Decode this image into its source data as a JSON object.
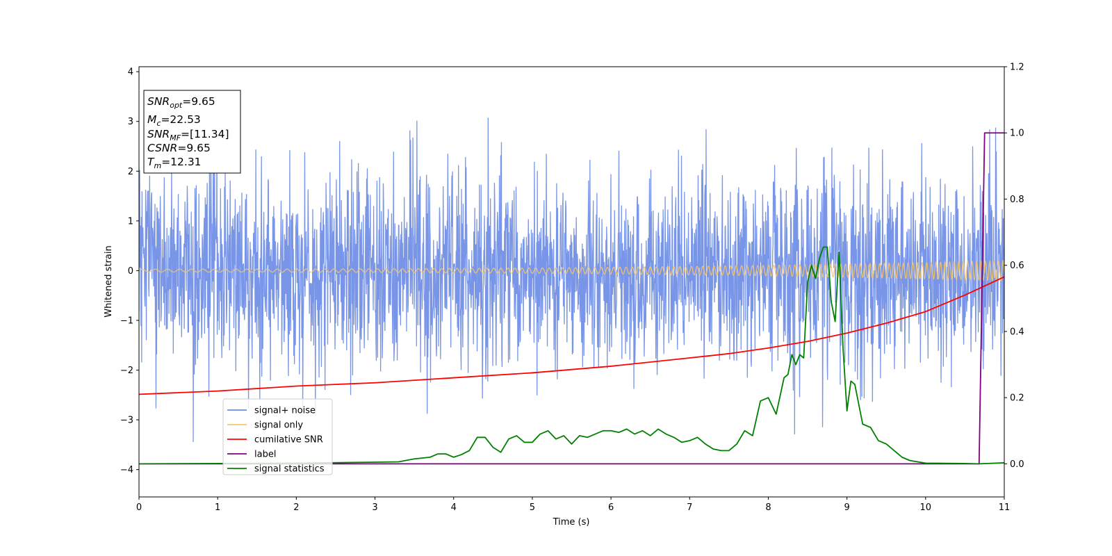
{
  "chart_data": {
    "type": "line",
    "xlabel": "Time (s)",
    "ylabel": "Whitened strain",
    "xlim": [
      0,
      11
    ],
    "ylim_left": [
      -4.55,
      4.1
    ],
    "ylim_right": [
      -0.1,
      1.2
    ],
    "xticks": [
      "0",
      "1",
      "2",
      "3",
      "4",
      "5",
      "6",
      "7",
      "8",
      "9",
      "10",
      "11"
    ],
    "yticks_left": [
      "4",
      "3",
      "2",
      "1",
      "0",
      "−1",
      "−2",
      "−3",
      "−4"
    ],
    "yticks_right": [
      "1.2",
      "1.0",
      "0.8",
      "0.6",
      "0.4",
      "0.2",
      "0.0"
    ],
    "info_box": {
      "snr_opt": {
        "base": "SNR",
        "sub": "opt",
        "value": "=9.65"
      },
      "mc": {
        "base": "M",
        "sub": "c",
        "value": "=22.53"
      },
      "snr_mf": {
        "base": "SNR",
        "sub": "MF",
        "value": "=[11.34]"
      },
      "csnr": {
        "base": "CSNR",
        "value": "=9.65"
      },
      "tm": {
        "base": "T",
        "sub": "m",
        "value": "=12.31"
      }
    },
    "legend": {
      "placement": "lower-left",
      "entries": [
        {
          "label": "signal+ noise",
          "color": "#6d8ce6"
        },
        {
          "label": "signal only",
          "color": "#f5c56b"
        },
        {
          "label": "cumilative SNR",
          "color": "#ff0000"
        },
        {
          "label": "label",
          "color": "#800080"
        },
        {
          "label": "signal statistics",
          "color": "#008000"
        }
      ]
    },
    "series": [
      {
        "name": "signal+ noise",
        "axis": "left",
        "description": "whitened noisy strain, roughly Gaussian with sd ~1, peaks reach about +3.7 and -3.6",
        "amplitude_range": [
          -3.6,
          3.7
        ]
      },
      {
        "name": "signal only",
        "axis": "left",
        "description": "chirp oscillation with rising frequency and amplitude",
        "amplitude_start": 0.03,
        "amplitude_end": 0.2
      },
      {
        "name": "cumilative SNR",
        "axis": "right",
        "x": [
          0,
          1,
          2,
          3,
          4,
          5,
          6,
          7,
          7.5,
          8,
          8.5,
          9,
          9.5,
          10,
          10.5,
          11
        ],
        "y": [
          0.21,
          0.22,
          0.235,
          0.245,
          0.26,
          0.275,
          0.295,
          0.32,
          0.333,
          0.35,
          0.37,
          0.395,
          0.425,
          0.46,
          0.51,
          0.565
        ]
      },
      {
        "name": "label",
        "axis": "right",
        "x": [
          0,
          10.68,
          10.75,
          11
        ],
        "y": [
          0.0,
          0.0,
          1.0,
          1.0
        ]
      },
      {
        "name": "signal statistics",
        "axis": "right",
        "x": [
          0,
          1,
          2,
          3,
          3.3,
          3.5,
          3.7,
          3.8,
          3.9,
          4.0,
          4.1,
          4.2,
          4.3,
          4.4,
          4.5,
          4.6,
          4.7,
          4.8,
          4.9,
          5.0,
          5.1,
          5.2,
          5.3,
          5.4,
          5.5,
          5.6,
          5.7,
          5.8,
          5.9,
          6.0,
          6.1,
          6.2,
          6.3,
          6.4,
          6.5,
          6.6,
          6.7,
          6.8,
          6.9,
          7.0,
          7.1,
          7.2,
          7.3,
          7.4,
          7.5,
          7.6,
          7.7,
          7.8,
          7.9,
          8.0,
          8.1,
          8.2,
          8.25,
          8.3,
          8.35,
          8.4,
          8.45,
          8.5,
          8.55,
          8.6,
          8.65,
          8.7,
          8.75,
          8.8,
          8.85,
          8.9,
          8.95,
          9.0,
          9.05,
          9.1,
          9.2,
          9.3,
          9.4,
          9.5,
          9.6,
          9.7,
          9.8,
          10.0,
          10.5,
          10.68,
          11
        ],
        "y": [
          0.0,
          0.001,
          0.002,
          0.005,
          0.006,
          0.015,
          0.02,
          0.03,
          0.03,
          0.02,
          0.028,
          0.04,
          0.08,
          0.08,
          0.05,
          0.035,
          0.075,
          0.085,
          0.065,
          0.065,
          0.09,
          0.1,
          0.075,
          0.085,
          0.06,
          0.085,
          0.08,
          0.09,
          0.1,
          0.1,
          0.095,
          0.105,
          0.09,
          0.1,
          0.085,
          0.105,
          0.09,
          0.08,
          0.065,
          0.07,
          0.08,
          0.06,
          0.045,
          0.04,
          0.04,
          0.06,
          0.1,
          0.085,
          0.19,
          0.2,
          0.15,
          0.26,
          0.27,
          0.33,
          0.3,
          0.33,
          0.32,
          0.55,
          0.6,
          0.56,
          0.62,
          0.655,
          0.655,
          0.49,
          0.43,
          0.64,
          0.35,
          0.16,
          0.25,
          0.24,
          0.12,
          0.11,
          0.07,
          0.06,
          0.04,
          0.02,
          0.01,
          0.002,
          0.001,
          0.0,
          0.003
        ]
      }
    ]
  }
}
